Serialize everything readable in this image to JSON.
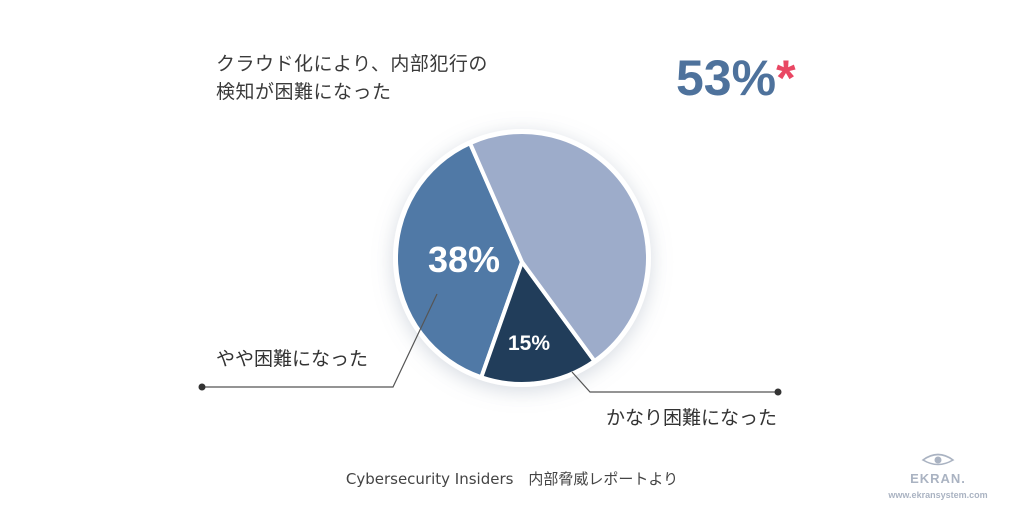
{
  "title_line1": "クラウド化により、内部犯行の",
  "title_line2": "検知が困難になった",
  "headline_value": "53%",
  "headline_asterisk": "*",
  "source": "Cybersecurity Insiders　内部脅威レポートより",
  "logo": {
    "name": "EKRAN.",
    "url": "www.ekransystem.com",
    "icon": "eye-icon"
  },
  "colors": {
    "accent": "#4e729c",
    "asterisk": "#e94763",
    "slice_somewhat": "#5079a6",
    "slice_very": "#213d5a",
    "slice_other": "#9dacca"
  },
  "chart_data": {
    "type": "pie",
    "slices": [
      {
        "label": "やや困難になった",
        "value": 38,
        "display": "38%",
        "color": "#5079a6"
      },
      {
        "label": "かなり困難になった",
        "value": 15,
        "display": "15%",
        "color": "#213d5a"
      },
      {
        "label": "",
        "value": 47,
        "display": "",
        "color": "#9dacca"
      }
    ]
  }
}
